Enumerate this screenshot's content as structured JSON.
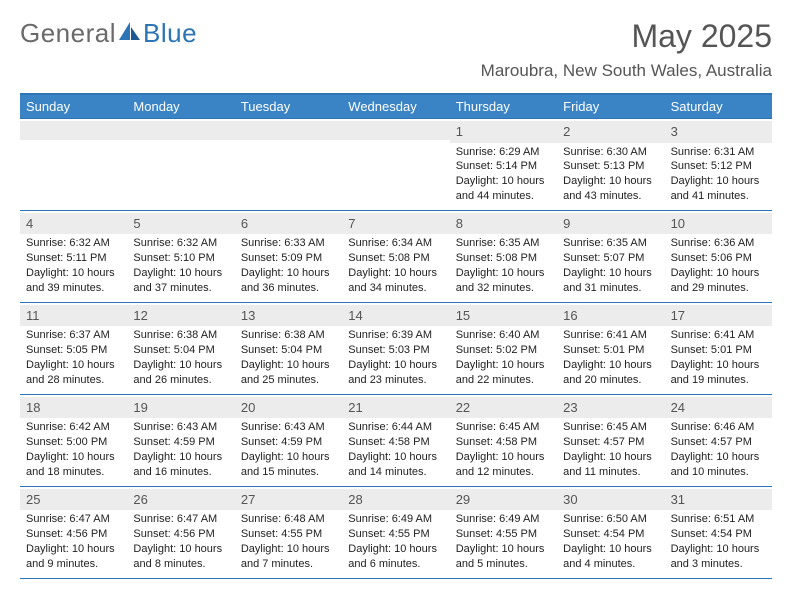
{
  "brand": {
    "part1": "General",
    "part2": "Blue"
  },
  "title": "May 2025",
  "location": "Maroubra, New South Wales, Australia",
  "colors": {
    "accent": "#2d74b5",
    "header_bg": "#3a83c5",
    "stripe": "#ececec",
    "text": "#333333"
  },
  "day_names": [
    "Sunday",
    "Monday",
    "Tuesday",
    "Wednesday",
    "Thursday",
    "Friday",
    "Saturday"
  ],
  "weeks": [
    [
      {
        "n": "",
        "l1": "",
        "l2": "",
        "l3": "",
        "l4": ""
      },
      {
        "n": "",
        "l1": "",
        "l2": "",
        "l3": "",
        "l4": ""
      },
      {
        "n": "",
        "l1": "",
        "l2": "",
        "l3": "",
        "l4": ""
      },
      {
        "n": "",
        "l1": "",
        "l2": "",
        "l3": "",
        "l4": ""
      },
      {
        "n": "1",
        "l1": "Sunrise: 6:29 AM",
        "l2": "Sunset: 5:14 PM",
        "l3": "Daylight: 10 hours",
        "l4": "and 44 minutes."
      },
      {
        "n": "2",
        "l1": "Sunrise: 6:30 AM",
        "l2": "Sunset: 5:13 PM",
        "l3": "Daylight: 10 hours",
        "l4": "and 43 minutes."
      },
      {
        "n": "3",
        "l1": "Sunrise: 6:31 AM",
        "l2": "Sunset: 5:12 PM",
        "l3": "Daylight: 10 hours",
        "l4": "and 41 minutes."
      }
    ],
    [
      {
        "n": "4",
        "l1": "Sunrise: 6:32 AM",
        "l2": "Sunset: 5:11 PM",
        "l3": "Daylight: 10 hours",
        "l4": "and 39 minutes."
      },
      {
        "n": "5",
        "l1": "Sunrise: 6:32 AM",
        "l2": "Sunset: 5:10 PM",
        "l3": "Daylight: 10 hours",
        "l4": "and 37 minutes."
      },
      {
        "n": "6",
        "l1": "Sunrise: 6:33 AM",
        "l2": "Sunset: 5:09 PM",
        "l3": "Daylight: 10 hours",
        "l4": "and 36 minutes."
      },
      {
        "n": "7",
        "l1": "Sunrise: 6:34 AM",
        "l2": "Sunset: 5:08 PM",
        "l3": "Daylight: 10 hours",
        "l4": "and 34 minutes."
      },
      {
        "n": "8",
        "l1": "Sunrise: 6:35 AM",
        "l2": "Sunset: 5:08 PM",
        "l3": "Daylight: 10 hours",
        "l4": "and 32 minutes."
      },
      {
        "n": "9",
        "l1": "Sunrise: 6:35 AM",
        "l2": "Sunset: 5:07 PM",
        "l3": "Daylight: 10 hours",
        "l4": "and 31 minutes."
      },
      {
        "n": "10",
        "l1": "Sunrise: 6:36 AM",
        "l2": "Sunset: 5:06 PM",
        "l3": "Daylight: 10 hours",
        "l4": "and 29 minutes."
      }
    ],
    [
      {
        "n": "11",
        "l1": "Sunrise: 6:37 AM",
        "l2": "Sunset: 5:05 PM",
        "l3": "Daylight: 10 hours",
        "l4": "and 28 minutes."
      },
      {
        "n": "12",
        "l1": "Sunrise: 6:38 AM",
        "l2": "Sunset: 5:04 PM",
        "l3": "Daylight: 10 hours",
        "l4": "and 26 minutes."
      },
      {
        "n": "13",
        "l1": "Sunrise: 6:38 AM",
        "l2": "Sunset: 5:04 PM",
        "l3": "Daylight: 10 hours",
        "l4": "and 25 minutes."
      },
      {
        "n": "14",
        "l1": "Sunrise: 6:39 AM",
        "l2": "Sunset: 5:03 PM",
        "l3": "Daylight: 10 hours",
        "l4": "and 23 minutes."
      },
      {
        "n": "15",
        "l1": "Sunrise: 6:40 AM",
        "l2": "Sunset: 5:02 PM",
        "l3": "Daylight: 10 hours",
        "l4": "and 22 minutes."
      },
      {
        "n": "16",
        "l1": "Sunrise: 6:41 AM",
        "l2": "Sunset: 5:01 PM",
        "l3": "Daylight: 10 hours",
        "l4": "and 20 minutes."
      },
      {
        "n": "17",
        "l1": "Sunrise: 6:41 AM",
        "l2": "Sunset: 5:01 PM",
        "l3": "Daylight: 10 hours",
        "l4": "and 19 minutes."
      }
    ],
    [
      {
        "n": "18",
        "l1": "Sunrise: 6:42 AM",
        "l2": "Sunset: 5:00 PM",
        "l3": "Daylight: 10 hours",
        "l4": "and 18 minutes."
      },
      {
        "n": "19",
        "l1": "Sunrise: 6:43 AM",
        "l2": "Sunset: 4:59 PM",
        "l3": "Daylight: 10 hours",
        "l4": "and 16 minutes."
      },
      {
        "n": "20",
        "l1": "Sunrise: 6:43 AM",
        "l2": "Sunset: 4:59 PM",
        "l3": "Daylight: 10 hours",
        "l4": "and 15 minutes."
      },
      {
        "n": "21",
        "l1": "Sunrise: 6:44 AM",
        "l2": "Sunset: 4:58 PM",
        "l3": "Daylight: 10 hours",
        "l4": "and 14 minutes."
      },
      {
        "n": "22",
        "l1": "Sunrise: 6:45 AM",
        "l2": "Sunset: 4:58 PM",
        "l3": "Daylight: 10 hours",
        "l4": "and 12 minutes."
      },
      {
        "n": "23",
        "l1": "Sunrise: 6:45 AM",
        "l2": "Sunset: 4:57 PM",
        "l3": "Daylight: 10 hours",
        "l4": "and 11 minutes."
      },
      {
        "n": "24",
        "l1": "Sunrise: 6:46 AM",
        "l2": "Sunset: 4:57 PM",
        "l3": "Daylight: 10 hours",
        "l4": "and 10 minutes."
      }
    ],
    [
      {
        "n": "25",
        "l1": "Sunrise: 6:47 AM",
        "l2": "Sunset: 4:56 PM",
        "l3": "Daylight: 10 hours",
        "l4": "and 9 minutes."
      },
      {
        "n": "26",
        "l1": "Sunrise: 6:47 AM",
        "l2": "Sunset: 4:56 PM",
        "l3": "Daylight: 10 hours",
        "l4": "and 8 minutes."
      },
      {
        "n": "27",
        "l1": "Sunrise: 6:48 AM",
        "l2": "Sunset: 4:55 PM",
        "l3": "Daylight: 10 hours",
        "l4": "and 7 minutes."
      },
      {
        "n": "28",
        "l1": "Sunrise: 6:49 AM",
        "l2": "Sunset: 4:55 PM",
        "l3": "Daylight: 10 hours",
        "l4": "and 6 minutes."
      },
      {
        "n": "29",
        "l1": "Sunrise: 6:49 AM",
        "l2": "Sunset: 4:55 PM",
        "l3": "Daylight: 10 hours",
        "l4": "and 5 minutes."
      },
      {
        "n": "30",
        "l1": "Sunrise: 6:50 AM",
        "l2": "Sunset: 4:54 PM",
        "l3": "Daylight: 10 hours",
        "l4": "and 4 minutes."
      },
      {
        "n": "31",
        "l1": "Sunrise: 6:51 AM",
        "l2": "Sunset: 4:54 PM",
        "l3": "Daylight: 10 hours",
        "l4": "and 3 minutes."
      }
    ]
  ]
}
